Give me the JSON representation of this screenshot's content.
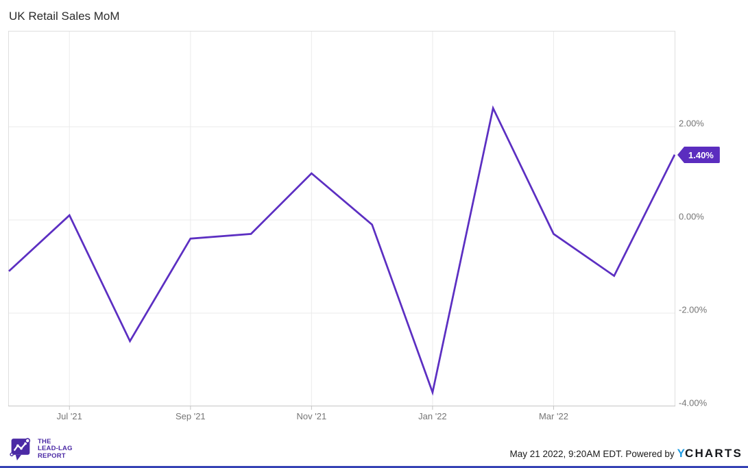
{
  "title": "UK Retail Sales MoM",
  "colors": {
    "line": "#5c2fc2",
    "badge": "#5b2dbf",
    "ycharts_blue": "#1e9be2",
    "logo_purple": "#4b2aa5",
    "bottom_bar": "#3643b5",
    "axis_text": "#757575",
    "title_text": "#2b2b2b",
    "grid": "#ebebeb",
    "plot_border": "#dedede",
    "axis_line": "#c4c4c4"
  },
  "badge": {
    "label": "1.40%"
  },
  "footer": {
    "attribution": "May 21 2022, 9:20AM EDT. Powered by",
    "ycharts_y": "Y",
    "ycharts_rest": "CHARTS",
    "logo_line1": "THE",
    "logo_line2": "LEAD-LAG",
    "logo_line3": "REPORT"
  },
  "chart_data": {
    "type": "line",
    "title": "UK Retail Sales MoM",
    "series": [
      {
        "name": "UK Retail Sales MoM",
        "x": [
          "Jun '21",
          "Jul '21",
          "Aug '21",
          "Sep '21",
          "Oct '21",
          "Nov '21",
          "Dec '21",
          "Jan '22",
          "Feb '22",
          "Mar '22",
          "Apr '22",
          "May '22"
        ],
        "values": [
          -1.1,
          0.1,
          -2.6,
          -0.4,
          -0.3,
          1.0,
          -0.1,
          -3.7,
          2.4,
          -0.3,
          -1.2,
          1.4
        ]
      }
    ],
    "unit": "percent MoM",
    "last_value_label": "1.40%",
    "x_axis": {
      "tick_labels": [
        "Jul '21",
        "Sep '21",
        "Nov '21",
        "Jan '22",
        "Mar '22"
      ],
      "tick_indices": [
        1,
        3,
        5,
        7,
        9
      ]
    },
    "y_axis": {
      "side": "right",
      "tick_values": [
        2,
        0,
        -2,
        -4
      ],
      "tick_labels": [
        "2.00%",
        "0.00%",
        "-2.00%",
        "-4.00%"
      ],
      "range": [
        -4,
        4.06
      ]
    },
    "grid": true,
    "legend": false
  }
}
